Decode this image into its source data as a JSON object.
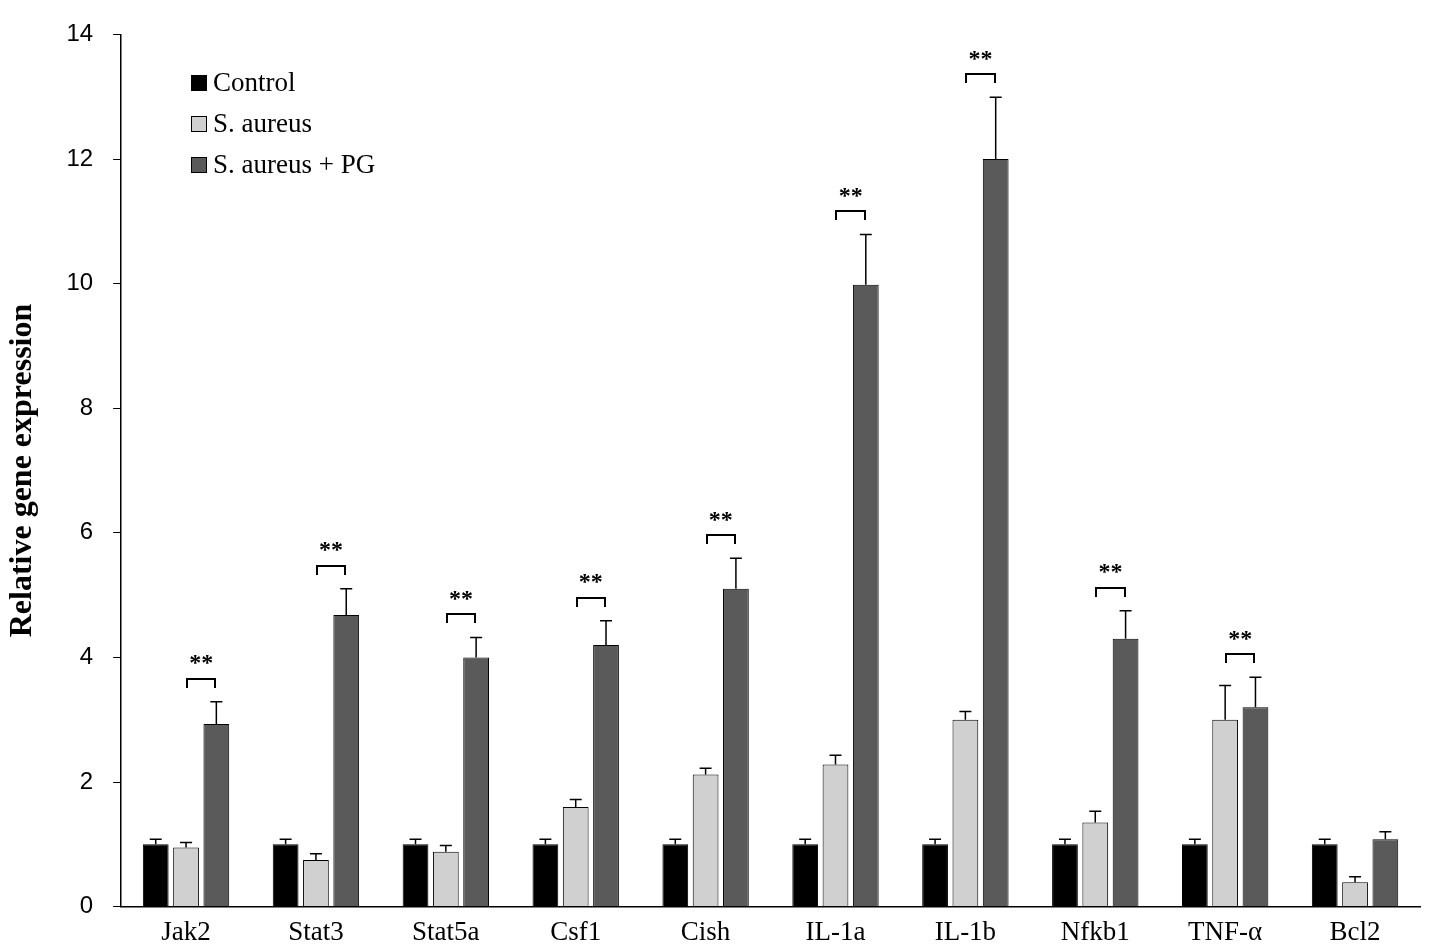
{
  "chart_data": {
    "type": "bar",
    "ylabel": "Relative gene expression",
    "categories": [
      "Jak2",
      "Stat3",
      "Stat5a",
      "Csf1",
      "Cish",
      "IL-1a",
      "IL-1b",
      "Nfkb1",
      "TNF-α",
      "Bcl2"
    ],
    "series": [
      {
        "name": "Control",
        "color": "#000000",
        "values": [
          1.0,
          1.0,
          1.0,
          1.0,
          1.0,
          1.0,
          1.0,
          1.0,
          1.0,
          1.0
        ],
        "errors": [
          [
            1.0,
            1.08
          ],
          [
            1.0,
            1.08
          ],
          [
            1.0,
            1.08
          ],
          [
            1.0,
            1.08
          ],
          [
            1.0,
            1.08
          ],
          [
            1.0,
            1.08
          ],
          [
            1.0,
            1.08
          ],
          [
            1.0,
            1.08
          ],
          [
            1.0,
            1.08
          ],
          [
            1.0,
            1.08
          ]
        ]
      },
      {
        "name": "S. aureus",
        "color": "#d0d0d0",
        "values": [
          0.95,
          0.75,
          0.88,
          1.6,
          2.12,
          2.28,
          3.0,
          1.35,
          3.0,
          0.39
        ],
        "errors": [
          [
            0.95,
            1.03
          ],
          [
            0.75,
            0.85
          ],
          [
            0.88,
            0.98
          ],
          [
            1.6,
            1.72
          ],
          [
            2.12,
            2.22
          ],
          [
            2.28,
            2.43
          ],
          [
            3.0,
            3.13
          ],
          [
            1.35,
            1.53
          ],
          [
            3.0,
            3.55
          ],
          [
            0.39,
            0.48
          ]
        ]
      },
      {
        "name": "S. aureus + PG",
        "color": "#5a5a5a",
        "values": [
          2.93,
          4.68,
          4.0,
          4.2,
          5.1,
          9.98,
          12.0,
          4.3,
          3.2,
          1.08
        ],
        "errors": [
          [
            2.93,
            3.29
          ],
          [
            4.68,
            5.1
          ],
          [
            4.0,
            4.32
          ],
          [
            4.2,
            4.59
          ],
          [
            5.1,
            5.59
          ],
          [
            9.98,
            10.79
          ],
          [
            12.0,
            12.99
          ],
          [
            4.3,
            4.75
          ],
          [
            3.2,
            3.68
          ],
          [
            1.08,
            1.2
          ]
        ]
      }
    ],
    "ylim": [
      0,
      14
    ],
    "yticks": [
      0,
      2,
      4,
      6,
      8,
      10,
      12,
      14
    ],
    "grid": false,
    "legend": "top left",
    "annotations": [
      "**",
      "**",
      "**",
      "**",
      "**",
      "**",
      "**",
      "**",
      "**"
    ]
  }
}
